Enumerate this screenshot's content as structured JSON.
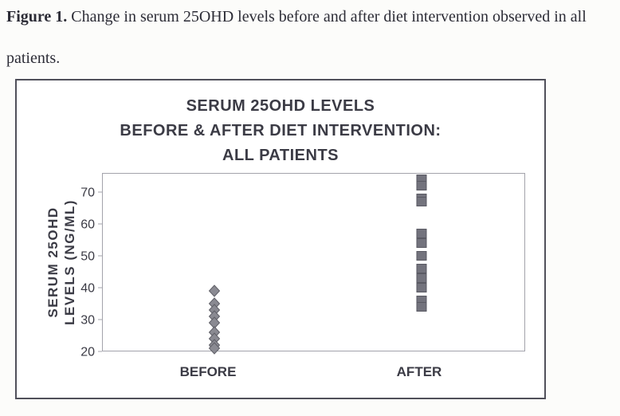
{
  "caption": {
    "figure_label": "Figure 1.",
    "line1_rest": " Change in serum 25OHD levels before and after diet intervention observed in all",
    "line2": "patients."
  },
  "chart": {
    "title_lines": [
      "SERUM 25OHD LEVELS",
      "BEFORE & AFTER DIET INTERVENTION:",
      "ALL PATIENTS"
    ],
    "y_axis_title_lines": [
      "SERUM 25OHD",
      "LEVELS (NG/ML)"
    ]
  },
  "chart_data": {
    "type": "scatter",
    "title": "SERUM 25OHD LEVELS BEFORE & AFTER DIET INTERVENTION: ALL PATIENTS",
    "ylabel": "SERUM 25OHD LEVELS (NG/ML)",
    "xlabel": "",
    "categories": [
      "BEFORE",
      "AFTER"
    ],
    "y_ticks": [
      20,
      30,
      40,
      50,
      60,
      70
    ],
    "ylim": [
      20,
      76
    ],
    "grid": false,
    "legend": "none",
    "series": [
      {
        "name": "BEFORE",
        "marker": "diamond",
        "values": [
          39,
          35,
          33,
          31,
          29,
          26,
          24,
          22,
          21
        ],
        "fill": "#8a8a92",
        "stroke": "#606068"
      },
      {
        "name": "AFTER",
        "marker": "square",
        "values": [
          74,
          72,
          68,
          67,
          57,
          54,
          50,
          46,
          43,
          40,
          36,
          34
        ],
        "fill": "#73737d",
        "stroke": "#5a5a63"
      }
    ],
    "colors": {
      "text": "#3b3b45",
      "frame": "#a3a3ab",
      "outer_border": "#50505a"
    }
  }
}
